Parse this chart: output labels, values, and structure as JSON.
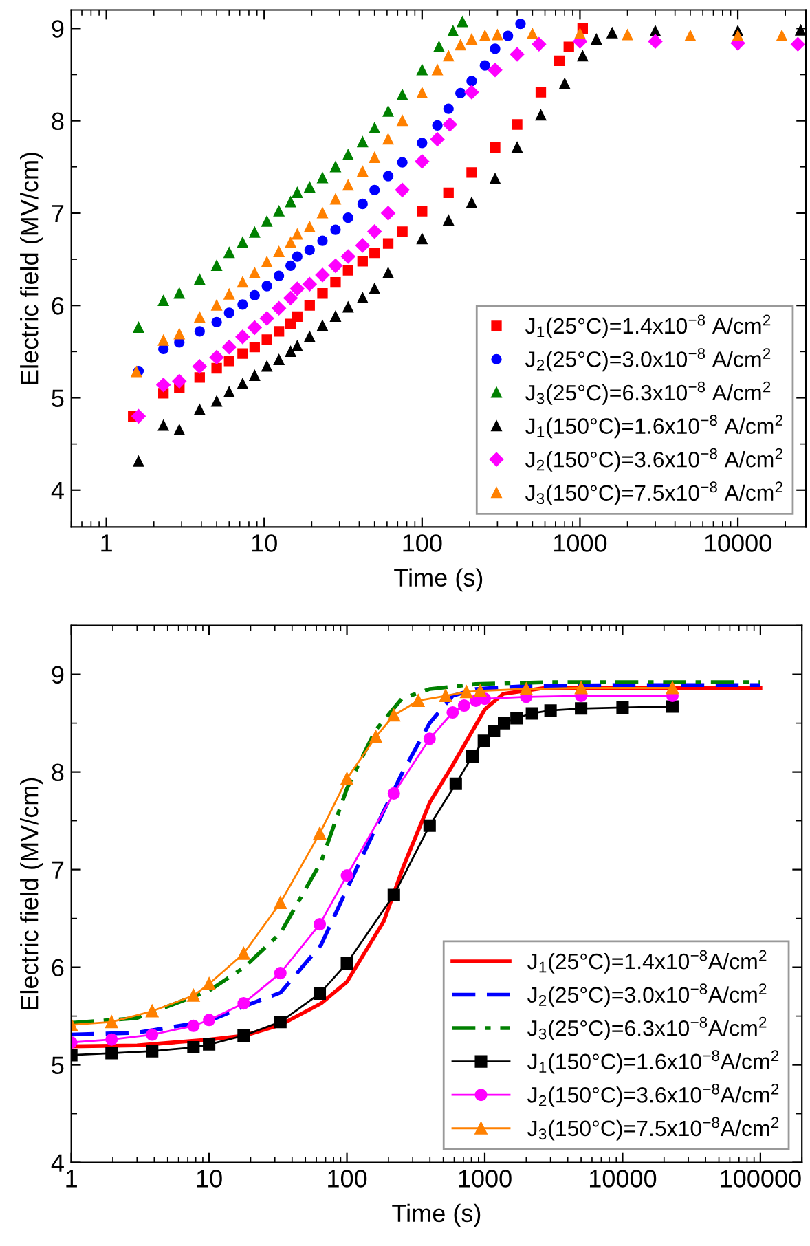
{
  "chart_data": [
    {
      "type": "scatter",
      "xlabel": "Time (s)",
      "ylabel": "Electric field (MV/cm)",
      "log": "x",
      "xlim": [
        0.6,
        27000
      ],
      "xticks": [
        1,
        10,
        100,
        1000,
        10000
      ],
      "ylim": [
        3.6,
        9.2
      ],
      "yticks": [
        4,
        5,
        6,
        7,
        8,
        9
      ],
      "grid": false,
      "legend": "bottom right",
      "series": [
        {
          "name": "J$_{1}$(25°C)=1.4x10$^{−8}$ A/cm$^{2}$",
          "color": "#ff0000",
          "marker": "square",
          "x": [
            1.48,
            2.3,
            2.9,
            3.9,
            5,
            6,
            7.3,
            8.7,
            10.4,
            12.4,
            14.7,
            16.2,
            19.4,
            23.4,
            28.3,
            34,
            42,
            50,
            61,
            75,
            100,
            147,
            206,
            290,
            400,
            565,
            740,
            850,
            1040
          ],
          "values": [
            4.8,
            5.05,
            5.11,
            5.22,
            5.32,
            5.4,
            5.48,
            5.55,
            5.63,
            5.72,
            5.8,
            5.88,
            6.0,
            6.13,
            6.25,
            6.38,
            6.48,
            6.57,
            6.67,
            6.8,
            7.02,
            7.22,
            7.44,
            7.71,
            7.96,
            8.31,
            8.65,
            8.8,
            9.0
          ]
        },
        {
          "name": "J$_{2}$(25°C)=3.0x10$^{−8}$ A/cm$^{2}$",
          "color": "#0000ff",
          "marker": "circle",
          "x": [
            1.6,
            2.3,
            2.9,
            3.9,
            5,
            6,
            7.3,
            8.7,
            10.4,
            12.4,
            14.7,
            16.2,
            19.4,
            23.4,
            28.3,
            34,
            42,
            50,
            61,
            75,
            100,
            125,
            147,
            175,
            206,
            250,
            290,
            350,
            420
          ],
          "values": [
            5.29,
            5.53,
            5.6,
            5.72,
            5.82,
            5.92,
            6.01,
            6.11,
            6.21,
            6.32,
            6.43,
            6.53,
            6.6,
            6.7,
            6.82,
            6.95,
            7.1,
            7.25,
            7.4,
            7.55,
            7.76,
            7.95,
            8.13,
            8.3,
            8.43,
            8.6,
            8.78,
            8.92,
            9.05
          ]
        },
        {
          "name": "J$_{3}$(25°C)=6.3x10$^{−8}$ A/cm$^{2}$",
          "color": "#008000",
          "marker": "triangle",
          "x": [
            1.6,
            2.3,
            2.9,
            3.9,
            5,
            6,
            7.3,
            8.7,
            10.4,
            12.4,
            14.7,
            16.2,
            19.4,
            23.4,
            28.3,
            34,
            42,
            50,
            61,
            75,
            100,
            128,
            157,
            180
          ],
          "values": [
            5.76,
            6.05,
            6.13,
            6.28,
            6.43,
            6.57,
            6.68,
            6.79,
            6.91,
            7.02,
            7.12,
            7.22,
            7.28,
            7.38,
            7.5,
            7.63,
            7.77,
            7.92,
            8.1,
            8.28,
            8.55,
            8.8,
            8.97,
            9.07
          ]
        },
        {
          "name": "J$_{1}$(150°C)=1.6x10$^{−8}$ A/cm$^{2}$",
          "color": "#000000",
          "marker": "triangle",
          "x": [
            1.6,
            2.3,
            2.9,
            3.9,
            5,
            6,
            7.3,
            8.7,
            10.4,
            12.4,
            14.7,
            16.2,
            19.4,
            23.4,
            28.3,
            34,
            42,
            50,
            61,
            100,
            147,
            206,
            290,
            400,
            565,
            800,
            1040,
            1270,
            1600,
            3000,
            10000,
            25000
          ],
          "values": [
            4.31,
            4.7,
            4.65,
            4.87,
            4.96,
            5.06,
            5.15,
            5.24,
            5.34,
            5.41,
            5.5,
            5.56,
            5.66,
            5.78,
            5.88,
            5.98,
            6.08,
            6.18,
            6.35,
            6.72,
            6.92,
            7.11,
            7.37,
            7.71,
            8.06,
            8.4,
            8.7,
            8.88,
            8.95,
            8.97,
            8.97,
            8.98
          ]
        },
        {
          "name": "J$_{2}$(150°C)=3.6x10$^{−8}$ A/cm$^{2}$",
          "color": "#ff00ff",
          "marker": "diamond",
          "x": [
            1.6,
            2.3,
            2.9,
            3.9,
            5,
            6,
            7.3,
            8.7,
            10.4,
            12.4,
            14.7,
            16.2,
            19.4,
            23.4,
            28.3,
            34,
            42,
            50,
            61,
            75,
            100,
            125,
            150,
            206,
            290,
            400,
            550,
            1000,
            3000,
            10000,
            24000
          ],
          "values": [
            4.8,
            5.14,
            5.18,
            5.34,
            5.44,
            5.55,
            5.66,
            5.76,
            5.86,
            5.97,
            6.08,
            6.18,
            6.23,
            6.33,
            6.43,
            6.53,
            6.65,
            6.8,
            7.0,
            7.25,
            7.56,
            7.8,
            7.96,
            8.31,
            8.55,
            8.72,
            8.83,
            8.86,
            8.86,
            8.84,
            8.83
          ]
        },
        {
          "name": "J$_{3}$(150°C)=7.5x10$^{−8}$ A/cm$^{2}$",
          "color": "#ff8000",
          "marker": "triangle",
          "x": [
            1.55,
            2.3,
            2.9,
            3.9,
            5,
            6,
            7.3,
            8.7,
            10.4,
            12.4,
            14.7,
            16.2,
            19.4,
            23.4,
            28.3,
            34,
            42,
            50,
            61,
            75,
            100,
            125,
            147,
            175,
            206,
            250,
            300,
            500,
            1000,
            2000,
            5000,
            10000,
            19000
          ],
          "values": [
            5.28,
            5.62,
            5.69,
            5.87,
            6.0,
            6.12,
            6.25,
            6.35,
            6.47,
            6.58,
            6.68,
            6.77,
            6.85,
            7.0,
            7.15,
            7.3,
            7.45,
            7.6,
            7.8,
            8.0,
            8.3,
            8.55,
            8.7,
            8.82,
            8.88,
            8.92,
            8.93,
            8.94,
            8.94,
            8.93,
            8.92,
            8.92,
            8.92
          ]
        }
      ]
    },
    {
      "type": "line",
      "xlabel": "Time (s)",
      "ylabel": "Electric field (MV/cm)",
      "log": "x",
      "xlim": [
        1,
        200000
      ],
      "xticks": [
        1,
        10,
        100,
        1000,
        10000,
        100000
      ],
      "ylim": [
        4,
        9.5
      ],
      "yticks": [
        4,
        5,
        6,
        7,
        8,
        9
      ],
      "grid": false,
      "legend": "bottom right",
      "series": [
        {
          "name": "J$_{1}$(25°C)=1.4x10$^{−8}$A/cm$^{2}$",
          "color": "#ff0000",
          "line_style": "solid",
          "marker": "none",
          "x": [
            1,
            3,
            10,
            18,
            33,
            65,
            100,
            185,
            260,
            400,
            585,
            1000,
            1360,
            2700,
            10000,
            100000
          ],
          "values": [
            5.19,
            5.2,
            5.26,
            5.3,
            5.41,
            5.63,
            5.85,
            6.47,
            7.05,
            7.69,
            8.07,
            8.64,
            8.8,
            8.86,
            8.86,
            8.86
          ]
        },
        {
          "name": "J$_{2}$(25°C)=3.0x10$^{−8}$A/cm$^{2}$",
          "color": "#0000ff",
          "line_style": "dashed",
          "marker": "none",
          "x": [
            1,
            3,
            10,
            18,
            33,
            65,
            100,
            185,
            250,
            398,
            585,
            860,
            2000,
            10000,
            100000
          ],
          "values": [
            5.31,
            5.33,
            5.45,
            5.6,
            5.74,
            6.23,
            6.8,
            7.6,
            7.98,
            8.5,
            8.78,
            8.85,
            8.88,
            8.89,
            8.89
          ]
        },
        {
          "name": "J$_{3}$(25°C)=6.3x10$^{−8}$A/cm$^{2}$",
          "color": "#008000",
          "line_style": "dashdot",
          "marker": "none",
          "x": [
            1,
            3,
            10,
            18,
            33,
            65,
            100,
            160,
            250,
            400,
            860,
            3000,
            100000
          ],
          "values": [
            5.43,
            5.48,
            5.76,
            6.0,
            6.35,
            7.08,
            7.83,
            8.42,
            8.75,
            8.85,
            8.9,
            8.92,
            8.92
          ]
        },
        {
          "name": "J$_{1}$(150°C)=1.6x10$^{−8}$A/cm$^{2}$",
          "color": "#000000",
          "line_style": "solid",
          "marker": "square",
          "x": [
            1,
            1.96,
            3.86,
            7.7,
            10,
            17.8,
            32.9,
            63.5,
            100,
            219,
            398,
            616,
            813,
            985,
            1166,
            1380,
            1700,
            2200,
            3000,
            5000,
            10000,
            23000
          ],
          "values": [
            5.1,
            5.12,
            5.14,
            5.18,
            5.21,
            5.3,
            5.44,
            5.73,
            6.04,
            6.74,
            7.45,
            7.88,
            8.16,
            8.32,
            8.42,
            8.5,
            8.55,
            8.6,
            8.63,
            8.65,
            8.66,
            8.67
          ]
        },
        {
          "name": "J$_{2}$(150°C)=3.6x10$^{−8}$A/cm$^{2}$",
          "color": "#ff00ff",
          "line_style": "solid",
          "marker": "circle",
          "x": [
            1,
            1.96,
            3.86,
            7.7,
            10,
            17.8,
            32.9,
            63.5,
            100,
            219,
            398,
            585,
            708,
            860,
            1000,
            2000,
            5000,
            23000
          ],
          "values": [
            5.23,
            5.26,
            5.31,
            5.4,
            5.46,
            5.63,
            5.94,
            6.44,
            6.94,
            7.78,
            8.34,
            8.61,
            8.68,
            8.73,
            8.75,
            8.77,
            8.78,
            8.78
          ]
        },
        {
          "name": "J$_{3}$(150°C)=7.5x10$^{−8}$A/cm$^{2}$",
          "color": "#ff8000",
          "line_style": "solid",
          "marker": "triangle",
          "x": [
            1,
            1.96,
            3.86,
            7.7,
            10,
            17.8,
            32.9,
            63.5,
            100,
            162,
            219,
            329,
            520,
            736,
            926,
            2000,
            5000,
            23000
          ],
          "values": [
            5.41,
            5.44,
            5.55,
            5.71,
            5.83,
            6.14,
            6.66,
            7.37,
            7.93,
            8.36,
            8.58,
            8.73,
            8.78,
            8.82,
            8.83,
            8.85,
            8.86,
            8.86
          ]
        }
      ]
    }
  ]
}
